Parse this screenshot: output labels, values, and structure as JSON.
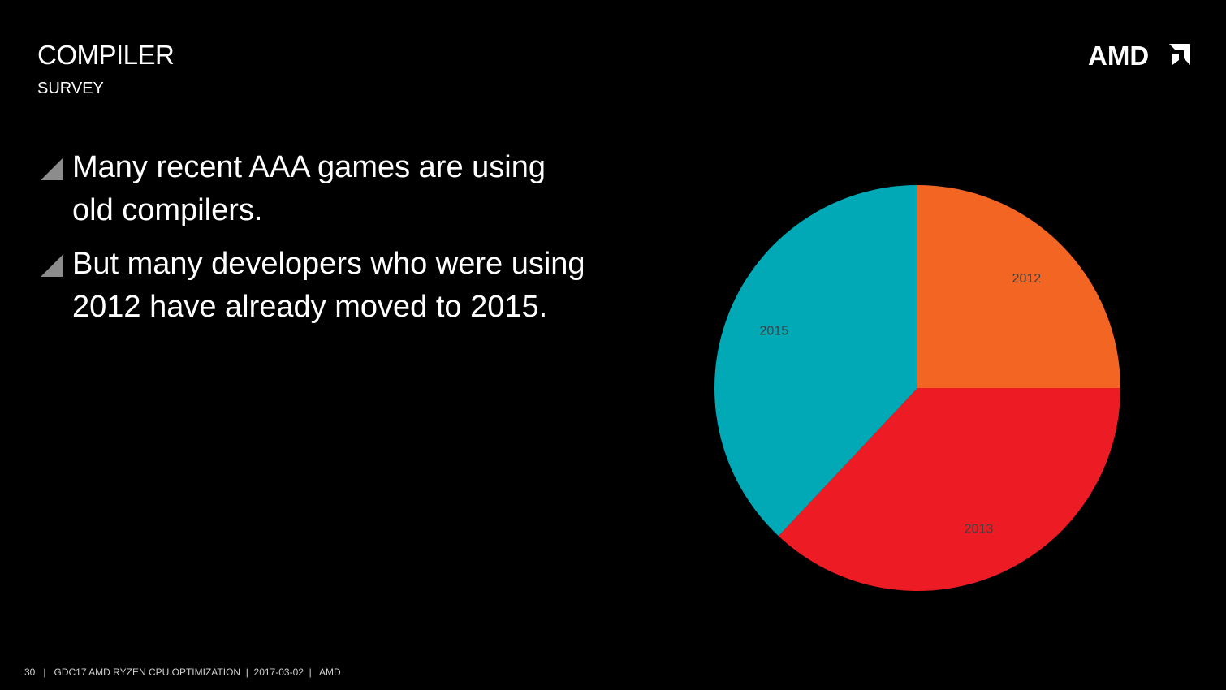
{
  "slide": {
    "title": "COMPILER",
    "subtitle": "SURVEY",
    "logo_text": "AMD",
    "bullets": [
      "Many recent AAA games are using old compilers.",
      "But many developers who were using 2012 have already moved to 2015."
    ],
    "footer": {
      "page_number": "30",
      "event": "GDC17 AMD RYZEN CPU OPTIMIZATION",
      "date": "2017-03-02",
      "company": "AMD"
    }
  },
  "chart_data": {
    "type": "pie",
    "categories": [
      "2012",
      "2013",
      "2015"
    ],
    "values": [
      25,
      37,
      38
    ],
    "colors": [
      "#f26522",
      "#ed1c24",
      "#00a9b5"
    ],
    "label_color": "#404040"
  }
}
